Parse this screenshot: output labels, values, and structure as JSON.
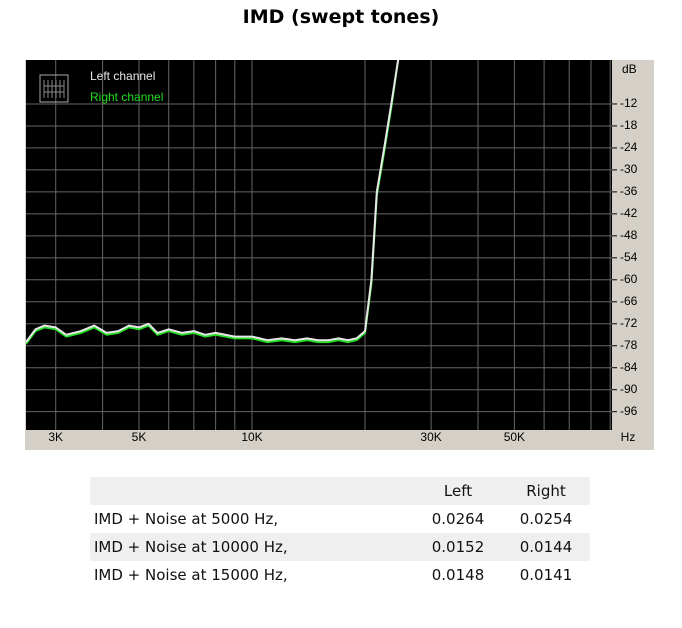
{
  "chart_data": {
    "type": "line",
    "title": "IMD (swept tones)",
    "y_unit": "dB",
    "x_unit": "Hz",
    "log_x": true,
    "grid": true,
    "xlim": [
      2500,
      91000
    ],
    "ylim": [
      -101,
      0
    ],
    "xticks": [
      {
        "value": 3000,
        "label": "3K"
      },
      {
        "value": 5000,
        "label": "5K"
      },
      {
        "value": 10000,
        "label": "10K"
      },
      {
        "value": 30000,
        "label": "30K"
      },
      {
        "value": 50000,
        "label": "50K"
      }
    ],
    "x_minor_ticks": [
      4000,
      6000,
      7000,
      8000,
      9000,
      20000,
      40000,
      60000,
      70000,
      80000,
      90000
    ],
    "yticks": [
      -12,
      -18,
      -24,
      -30,
      -36,
      -42,
      -48,
      -54,
      -60,
      -66,
      -72,
      -78,
      -84,
      -90,
      -96
    ],
    "x": [
      2500,
      2650,
      2800,
      3000,
      3200,
      3500,
      3800,
      4100,
      4400,
      4700,
      5000,
      5300,
      5600,
      6000,
      6500,
      7000,
      7500,
      8000,
      9000,
      10000,
      11000,
      12000,
      13000,
      14000,
      15000,
      16000,
      17000,
      18000,
      19000,
      20000,
      20800,
      21500,
      22500,
      23500,
      24500
    ],
    "series": [
      {
        "name": "Left channel",
        "color": "#e8e8e8",
        "values": [
          -77,
          -73.5,
          -72.5,
          -73,
          -75,
          -74,
          -72.5,
          -74.5,
          -74,
          -72.5,
          -73,
          -72,
          -74.5,
          -73.5,
          -74.5,
          -74,
          -75,
          -74.5,
          -75.5,
          -75.5,
          -76.5,
          -76,
          -76.5,
          -76,
          -76.5,
          -76.5,
          -76,
          -76.5,
          -76,
          -74,
          -60,
          -36,
          -24,
          -12,
          0
        ]
      },
      {
        "name": "Right channel",
        "color": "#22dd22",
        "values": [
          -77.5,
          -74,
          -73,
          -73.5,
          -75.5,
          -74.5,
          -73,
          -75,
          -74.5,
          -73,
          -73.5,
          -72.5,
          -75,
          -74,
          -75,
          -74.5,
          -75.5,
          -75,
          -76,
          -76,
          -77,
          -76.5,
          -77,
          -76.5,
          -77,
          -77,
          -76.5,
          -77,
          -76.5,
          -74.5,
          -61,
          -37,
          -25,
          -13,
          0
        ]
      }
    ]
  },
  "table": {
    "columns": [
      "Left",
      "Right"
    ],
    "rows": [
      [
        "IMD + Noise at 5000 Hz,",
        "0.0264",
        "0.0254"
      ],
      [
        "IMD + Noise at 10000 Hz,",
        "0.0152",
        "0.0144"
      ],
      [
        "IMD + Noise at 15000 Hz,",
        "0.0148",
        "0.0141"
      ]
    ]
  }
}
